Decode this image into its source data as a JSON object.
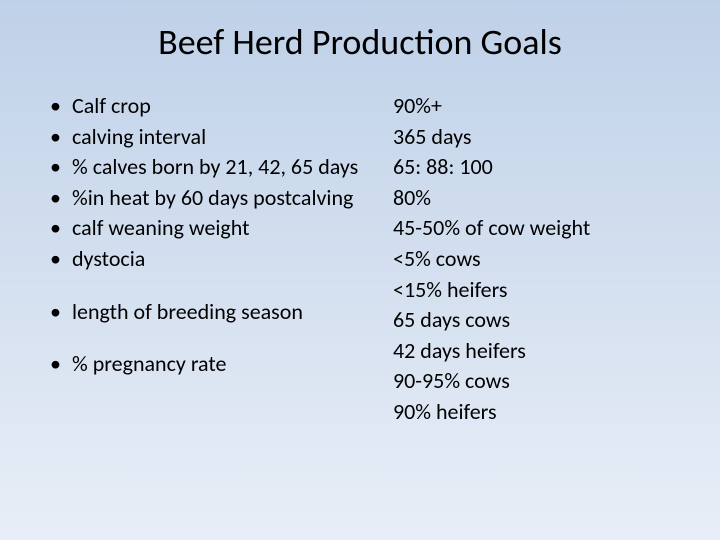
{
  "title": "Beef Herd Production Goals",
  "title_fontsize": 36,
  "body_fontsize": 22,
  "line_height": 1.3,
  "background_gradient_top": "#bfd1e8",
  "background_gradient_bottom": "#e8eef7",
  "text_color": "#000000",
  "metrics": {
    "group1": [
      {
        "label": "Calf crop"
      },
      {
        "label": "calving interval"
      },
      {
        "label": "% calves born by 21, 42, 65 days"
      },
      {
        "label": "%in heat by 60 days postcalving"
      },
      {
        "label": "calf weaning weight"
      },
      {
        "label": "dystocia"
      }
    ],
    "group2": [
      {
        "label": "length of breeding season"
      }
    ],
    "group3": [
      {
        "label": "% pregnancy rate"
      }
    ]
  },
  "values": [
    "90%+",
    "365 days",
    "65: 88: 100",
    "80%",
    "45-50% of cow weight",
    "<5% cows",
    "<15% heifers",
    "65 days cows",
    "42 days heifers",
    "90-95% cows",
    "90% heifers"
  ]
}
